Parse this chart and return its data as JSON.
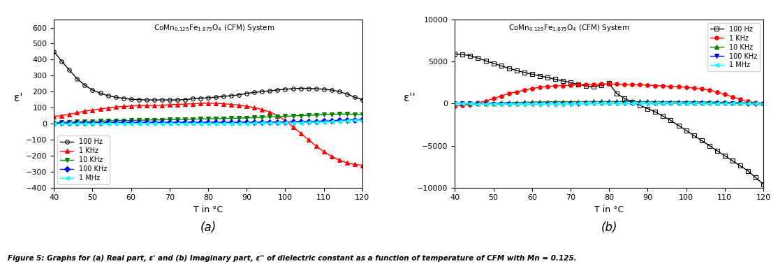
{
  "xlabel": "T in °C",
  "ylabel_a": "ε'",
  "ylabel_b": "ε''",
  "xlim": [
    40,
    120
  ],
  "ylim_a": [
    -400,
    650
  ],
  "ylim_b": [
    -10000,
    10000
  ],
  "xticks": [
    40,
    50,
    60,
    70,
    80,
    90,
    100,
    110,
    120
  ],
  "yticks_a": [
    -400,
    -300,
    -200,
    -100,
    0,
    100,
    200,
    300,
    400,
    500,
    600
  ],
  "yticks_b": [
    -10000,
    -5000,
    0,
    5000,
    10000
  ],
  "label_a": "(a)",
  "label_b": "(b)",
  "figure_caption": "Figure 5: Graphs for (a) Real part, ε' and (b) Imaginary part, ε'' of dielectric constant as a function of temperature of CFM with Mn = 0.125.",
  "background_color": "#ffffff",
  "title_a": "CoMn$_{0.125}$Fe$_{1.875}$O$_4$ (CFM) System",
  "title_b": "CoMn$_{0.125}$Fe$_{1.875}$O$_4$ (CFM) System",
  "freq_labels": [
    "100 Hz",
    "1 KHz",
    "10 KHz",
    "100 KHz",
    "1 MHz"
  ],
  "colors_a": [
    "black",
    "red",
    "green",
    "blue",
    "cyan"
  ],
  "markers_a": [
    "o",
    "^",
    "v",
    "D",
    "<"
  ],
  "colors_b": [
    "black",
    "red",
    "green",
    "blue",
    "cyan"
  ],
  "markers_b": [
    "s",
    "o",
    "^",
    "v",
    "<"
  ],
  "T": [
    40,
    42,
    44,
    46,
    48,
    50,
    52,
    54,
    56,
    58,
    60,
    62,
    64,
    66,
    68,
    70,
    72,
    74,
    76,
    78,
    80,
    82,
    84,
    86,
    88,
    90,
    92,
    94,
    96,
    98,
    100,
    102,
    104,
    106,
    108,
    110,
    112,
    114,
    116,
    118,
    120
  ],
  "eps_real_100Hz": [
    450,
    390,
    335,
    280,
    240,
    210,
    190,
    175,
    165,
    158,
    152,
    150,
    148,
    148,
    148,
    148,
    148,
    150,
    155,
    158,
    162,
    165,
    170,
    175,
    180,
    188,
    195,
    200,
    205,
    210,
    215,
    218,
    220,
    220,
    218,
    215,
    210,
    200,
    185,
    165,
    150
  ],
  "eps_real_1KHz": [
    45,
    50,
    58,
    68,
    78,
    85,
    92,
    98,
    103,
    107,
    110,
    112,
    113,
    114,
    115,
    118,
    120,
    122,
    124,
    126,
    128,
    126,
    124,
    120,
    115,
    108,
    100,
    88,
    72,
    50,
    20,
    -20,
    -60,
    -100,
    -140,
    -175,
    -205,
    -228,
    -245,
    -255,
    -260
  ],
  "eps_real_10KHz": [
    5,
    8,
    10,
    12,
    14,
    15,
    16,
    17,
    18,
    19,
    20,
    21,
    22,
    23,
    24,
    25,
    26,
    27,
    28,
    29,
    30,
    31,
    32,
    33,
    34,
    36,
    38,
    40,
    42,
    44,
    46,
    48,
    50,
    52,
    54,
    56,
    58,
    60,
    60,
    58,
    55
  ],
  "eps_real_100KHz": [
    2,
    3,
    4,
    5,
    5,
    6,
    6,
    7,
    7,
    7,
    8,
    8,
    8,
    8,
    8,
    8,
    8,
    8,
    8,
    8,
    8,
    8,
    8,
    8,
    9,
    9,
    9,
    9,
    10,
    10,
    10,
    11,
    12,
    13,
    14,
    16,
    18,
    20,
    22,
    24,
    25
  ],
  "eps_real_1MHz": [
    -2,
    -2,
    -1,
    -1,
    0,
    0,
    1,
    1,
    1,
    1,
    1,
    2,
    2,
    2,
    2,
    2,
    2,
    2,
    2,
    2,
    2,
    2,
    2,
    2,
    2,
    2,
    3,
    3,
    3,
    4,
    4,
    5,
    6,
    7,
    8,
    10,
    12,
    15,
    18,
    20,
    22
  ],
  "eps_imag_100Hz": [
    5900,
    5850,
    5700,
    5400,
    5100,
    4800,
    4500,
    4200,
    3950,
    3700,
    3500,
    3300,
    3100,
    2900,
    2700,
    2500,
    2300,
    2100,
    2000,
    2200,
    2400,
    1200,
    600,
    200,
    -200,
    -600,
    -1000,
    -1500,
    -2000,
    -2600,
    -3200,
    -3800,
    -4400,
    -5000,
    -5600,
    -6200,
    -6800,
    -7400,
    -8000,
    -8800,
    -9600
  ],
  "eps_imag_1KHz": [
    -300,
    -200,
    -100,
    100,
    300,
    600,
    900,
    1200,
    1400,
    1600,
    1800,
    1950,
    2050,
    2100,
    2150,
    2200,
    2250,
    2280,
    2300,
    2320,
    2330,
    2320,
    2300,
    2280,
    2250,
    2200,
    2150,
    2100,
    2050,
    2000,
    1950,
    1850,
    1750,
    1600,
    1400,
    1100,
    800,
    500,
    250,
    100,
    50
  ],
  "eps_imag_10KHz": [
    0,
    10,
    20,
    30,
    40,
    50,
    80,
    110,
    140,
    160,
    180,
    200,
    210,
    220,
    225,
    230,
    235,
    238,
    240,
    242,
    244,
    246,
    245,
    244,
    242,
    240,
    238,
    235,
    230,
    225,
    218,
    210,
    200,
    188,
    174,
    158,
    140,
    120,
    98,
    74,
    48
  ],
  "eps_imag_100KHz": [
    0,
    -5,
    -10,
    -15,
    -18,
    -20,
    -22,
    -24,
    -25,
    -25,
    -25,
    -24,
    -22,
    -20,
    -18,
    -15,
    -12,
    -10,
    -8,
    -6,
    -4,
    -2,
    0,
    2,
    5,
    8,
    12,
    16,
    20,
    24,
    28,
    30,
    30,
    28,
    24,
    18,
    10,
    0,
    -12,
    -25,
    -40
  ],
  "eps_imag_1MHz": [
    0,
    -5,
    -8,
    -12,
    -15,
    -18,
    -20,
    -22,
    -24,
    -25,
    -24,
    -22,
    -20,
    -18,
    -15,
    -12,
    -10,
    -8,
    -6,
    -4,
    -2,
    0,
    2,
    5,
    8,
    12,
    16,
    20,
    25,
    30,
    35,
    38,
    40,
    40,
    38,
    35,
    30,
    22,
    12,
    0,
    -15
  ]
}
